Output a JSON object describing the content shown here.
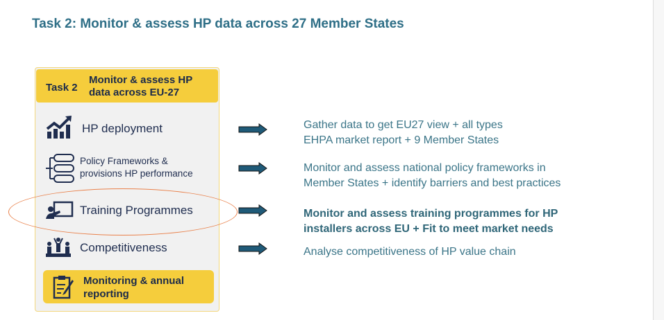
{
  "title": "Task 2: Monitor & assess HP data across 27 Member States",
  "panel": {
    "header_task": "Task 2",
    "header_text": "Monitor & assess HP data across EU-27",
    "items": [
      {
        "label": "HP deployment",
        "icon": "chart-growth-icon"
      },
      {
        "label": "Policy Frameworks & provisions HP performance",
        "icon": "hierarchy-list-icon"
      },
      {
        "label": "Training Programmes",
        "icon": "presentation-trainer-icon"
      },
      {
        "label": "Competitiveness",
        "icon": "podium-people-icon"
      }
    ],
    "footer": "Monitoring & annual reporting"
  },
  "descriptions": [
    "Gather data to get EU27 view + all types\nEHPA market report + 9 Member States",
    "Monitor and assess national policy frameworks in\nMember States + identify barriers and best practices",
    "Monitor and assess training programmes for HP\ninstallers across EU + Fit to meet market needs",
    "Analyse competitiveness of HP value chain"
  ],
  "colors": {
    "title": "#2f6f87",
    "yellow": "#f5cd3c",
    "arrow": "#1f5a78",
    "highlight": "#e9804a"
  }
}
